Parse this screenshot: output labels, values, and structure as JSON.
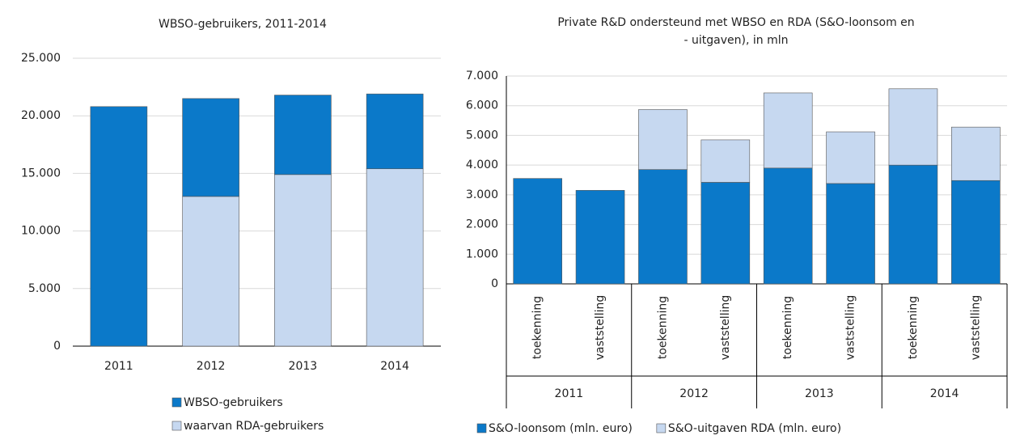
{
  "chart_data": [
    {
      "type": "stacked_bar",
      "title": [
        "WBSO-gebruikers, 2011-2014"
      ],
      "categories": [
        "2011",
        "2012",
        "2013",
        "2014"
      ],
      "series": [
        {
          "name": "WBSO-gebruikers",
          "color": "#0b79c9",
          "values": [
            20800,
            8500,
            6900,
            6500
          ]
        },
        {
          "name": "waarvan RDA-gebruikers",
          "color": "#c6d8f0",
          "values": [
            0,
            13000,
            14900,
            15400
          ]
        }
      ],
      "stack_order": [
        1,
        0
      ],
      "ylim": [
        0,
        25000
      ],
      "yticks": [
        0,
        {
          "value": 5000,
          "label": "5.000"
        },
        {
          "value": 10000,
          "label": "10.000"
        },
        {
          "value": 15000,
          "label": "15.000"
        },
        {
          "value": 20000,
          "label": "20.000"
        },
        {
          "value": 25000,
          "label": "25.000"
        }
      ],
      "grid": true,
      "legend": "bottom"
    },
    {
      "type": "stacked_bar",
      "title": [
        "Private R&D ondersteund met WBSO en RDA (S&O-loonsom en",
        "- uitgaven), in mln"
      ],
      "categories": [
        "toekenning",
        "vaststelling",
        "toekenning",
        "vaststelling",
        "toekenning",
        "vaststelling",
        "toekenning",
        "vaststelling"
      ],
      "groups": [
        "2011",
        "2012",
        "2013",
        "2014"
      ],
      "series": [
        {
          "name": "S&O-loonsom (mln. euro)",
          "color": "#0b79c9",
          "values": [
            3550,
            3150,
            3850,
            3420,
            3900,
            3380,
            4000,
            3480
          ]
        },
        {
          "name": "S&O-uitgaven RDA (mln. euro)",
          "color": "#c6d8f0",
          "values": [
            0,
            0,
            2020,
            1430,
            2530,
            1740,
            2570,
            1800
          ]
        }
      ],
      "stack_order": [
        0,
        1
      ],
      "ylim": [
        0,
        7000
      ],
      "yticks": [
        0,
        {
          "value": 1000,
          "label": "1.000"
        },
        {
          "value": 2000,
          "label": "2.000"
        },
        {
          "value": 3000,
          "label": "3.000"
        },
        {
          "value": 4000,
          "label": "4.000"
        },
        {
          "value": 5000,
          "label": "5.000"
        },
        {
          "value": 6000,
          "label": "6.000"
        },
        {
          "value": 7000,
          "label": "7.000"
        }
      ],
      "grid": true,
      "legend": "bottom"
    }
  ]
}
